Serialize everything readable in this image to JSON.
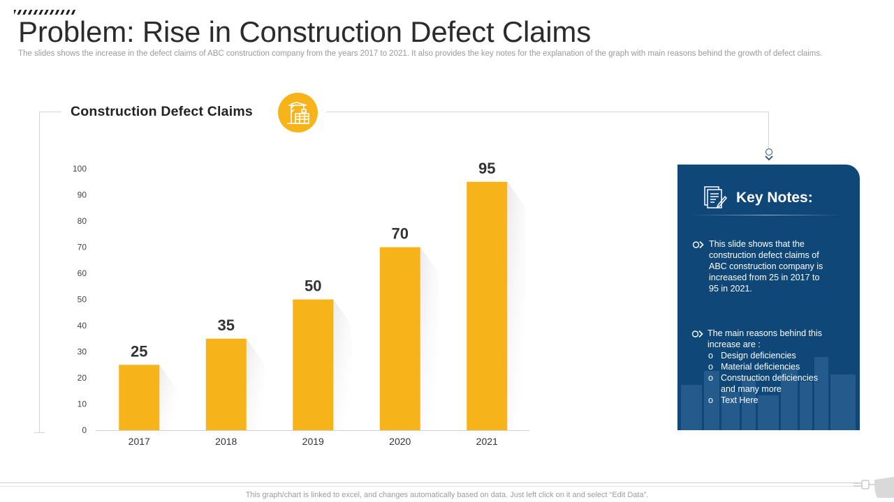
{
  "header": {
    "title": "Problem: Rise in Construction Defect Claims",
    "subtitle": "The slides shows the increase in the defect claims of ABC construction company from the years 2017 to 2021. It also provides the key notes for the explanation of the graph with main reasons behind the growth of defect claims."
  },
  "chart_section": {
    "heading": "Construction Defect Claims",
    "icon": "crane-building-icon"
  },
  "chart_data": {
    "type": "bar",
    "categories": [
      "2017",
      "2018",
      "2019",
      "2020",
      "2021"
    ],
    "values": [
      25,
      35,
      50,
      70,
      95
    ],
    "data_labels": [
      "25",
      "35",
      "50",
      "70",
      "95"
    ],
    "ylim": [
      0,
      100
    ],
    "yticks": [
      "0",
      "10",
      "20",
      "30",
      "40",
      "50",
      "60",
      "70",
      "80",
      "90",
      "100"
    ],
    "grid": false,
    "bar_color": "#F6B41A"
  },
  "key_notes": {
    "title": "Key Notes:",
    "icon": "document-edit-icon",
    "note1": [
      "This slide shows that the",
      "construction defect claims of",
      "ABC construction company is",
      "increased from 25 in 2017 to",
      "95 in 2021."
    ],
    "note2_intro": [
      "The main reasons behind this",
      "increase are :"
    ],
    "reasons": [
      "Design deficiencies",
      "Material deficiencies",
      "Construction deficiencies",
      "and many more",
      "Text Here"
    ],
    "reason_markers": [
      "o",
      "o",
      "o",
      "",
      "o"
    ],
    "panel_color": "#0F4779"
  },
  "footer": {
    "text": "This graph/chart is linked to excel, and changes automatically based on data. Just left click on it and select “Edit Data”."
  }
}
